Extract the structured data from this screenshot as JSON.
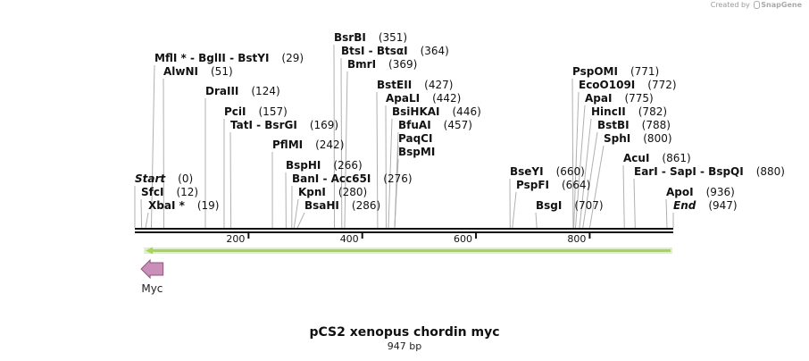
{
  "credit": {
    "prefix": "Created by",
    "brand": "SnapGene"
  },
  "sequence": {
    "name": "pCS2 xenopus chordin myc",
    "length_label": "947 bp",
    "length_bp": 947
  },
  "ruler": {
    "ticks": [
      {
        "pos": 200,
        "label": "200"
      },
      {
        "pos": 400,
        "label": "400"
      },
      {
        "pos": 600,
        "label": "600"
      },
      {
        "pos": 800,
        "label": "800"
      }
    ]
  },
  "features": [
    {
      "name": "Myc",
      "start": 19,
      "end": 56,
      "strand": "reverse",
      "color": "#c98fb8"
    }
  ],
  "orf": {
    "start": 19,
    "end": 947,
    "strand": "reverse",
    "color": "#a6d45e"
  },
  "sites": [
    {
      "id": "mfli",
      "names": [
        "MflI *",
        "BglII",
        "BstYI"
      ],
      "pos": "(29)",
      "bp": 29
    },
    {
      "id": "alwni",
      "names": [
        "AlwNI"
      ],
      "pos": "(51)",
      "bp": 51
    },
    {
      "id": "draiii",
      "names": [
        "DraIII"
      ],
      "pos": "(124)",
      "bp": 124
    },
    {
      "id": "pcii",
      "names": [
        "PciI"
      ],
      "pos": "(157)",
      "bp": 157
    },
    {
      "id": "tati",
      "names": [
        "TatI",
        "BsrGI"
      ],
      "pos": "(169)",
      "bp": 169
    },
    {
      "id": "pflmi",
      "names": [
        "PflMI"
      ],
      "pos": "(242)",
      "bp": 242
    },
    {
      "id": "bsphi",
      "names": [
        "BspHI"
      ],
      "pos": "(266)",
      "bp": 266
    },
    {
      "id": "bani",
      "names": [
        "BanI",
        "Acc65I"
      ],
      "pos": "(276)",
      "bp": 276
    },
    {
      "id": "kpni",
      "names": [
        "KpnI"
      ],
      "pos": "(280)",
      "bp": 280
    },
    {
      "id": "bsahi",
      "names": [
        "BsaHI"
      ],
      "pos": "(286)",
      "bp": 286
    },
    {
      "id": "bsrbi",
      "names": [
        "BsrBI"
      ],
      "pos": "(351)",
      "bp": 351
    },
    {
      "id": "btsi",
      "names": [
        "BtsI",
        "BtsαI"
      ],
      "pos": "(364)",
      "bp": 364
    },
    {
      "id": "bmri",
      "names": [
        "BmrI"
      ],
      "pos": "(369)",
      "bp": 369
    },
    {
      "id": "bsteii",
      "names": [
        "BstEII"
      ],
      "pos": "(427)",
      "bp": 427
    },
    {
      "id": "apali",
      "names": [
        "ApaLI"
      ],
      "pos": "(442)",
      "bp": 442
    },
    {
      "id": "bsihkai",
      "names": [
        "BsiHKAI"
      ],
      "pos": "(446)",
      "bp": 446
    },
    {
      "id": "bfuai",
      "names": [
        "BfuAI"
      ],
      "pos": "(457)",
      "bp": 457
    },
    {
      "id": "paqci",
      "names": [
        "PaqCI"
      ],
      "pos": "",
      "bp": 457
    },
    {
      "id": "bspmi",
      "names": [
        "BspMI"
      ],
      "pos": "",
      "bp": 457
    },
    {
      "id": "bseyi",
      "names": [
        "BseYI"
      ],
      "pos": "(660)",
      "bp": 660
    },
    {
      "id": "pspfi",
      "names": [
        "PspFI"
      ],
      "pos": "(664)",
      "bp": 664
    },
    {
      "id": "bsgi",
      "names": [
        "BsgI"
      ],
      "pos": "(707)",
      "bp": 707
    },
    {
      "id": "pspomi",
      "names": [
        "PspOMI"
      ],
      "pos": "(771)",
      "bp": 771
    },
    {
      "id": "eco0109i",
      "names": [
        "EcoO109I"
      ],
      "pos": "(772)",
      "bp": 772
    },
    {
      "id": "apai",
      "names": [
        "ApaI"
      ],
      "pos": "(775)",
      "bp": 775
    },
    {
      "id": "hincii",
      "names": [
        "HincII"
      ],
      "pos": "(782)",
      "bp": 782
    },
    {
      "id": "bstbi",
      "names": [
        "BstBI"
      ],
      "pos": "(788)",
      "bp": 788
    },
    {
      "id": "sphi",
      "names": [
        "SphI"
      ],
      "pos": "(800)",
      "bp": 800
    },
    {
      "id": "acui",
      "names": [
        "AcuI"
      ],
      "pos": "(861)",
      "bp": 861
    },
    {
      "id": "eari",
      "names": [
        "EarI",
        "SapI",
        "BspQI"
      ],
      "pos": "(880)",
      "bp": 880
    },
    {
      "id": "apoi",
      "names": [
        "ApoI"
      ],
      "pos": "(936)",
      "bp": 936
    },
    {
      "id": "start",
      "names": [
        "Start"
      ],
      "pos": "(0)",
      "bp": 0,
      "italic": true
    },
    {
      "id": "sfci",
      "names": [
        "SfcI"
      ],
      "pos": "(12)",
      "bp": 12
    },
    {
      "id": "xbai",
      "names": [
        "XbaI *"
      ],
      "pos": "(19)",
      "bp": 19
    },
    {
      "id": "end",
      "names": [
        "End"
      ],
      "pos": "(947)",
      "bp": 947,
      "italic": true
    }
  ]
}
